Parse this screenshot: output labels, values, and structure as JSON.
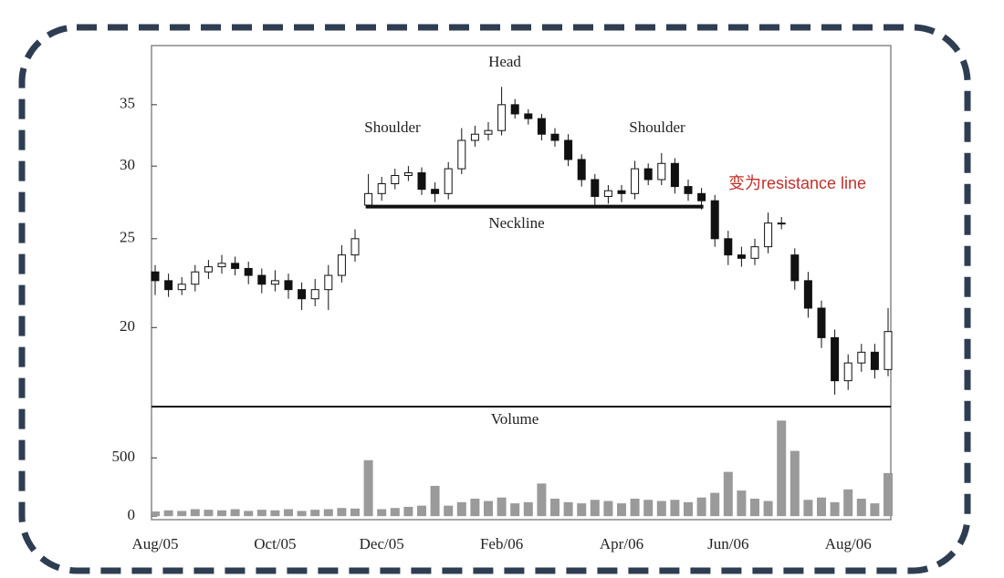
{
  "chart_data": {
    "type": "candlestick",
    "log_scale": true,
    "categories": [
      "Aug/05",
      null,
      null,
      null,
      null,
      null,
      null,
      null,
      null,
      "Oct/05",
      null,
      null,
      null,
      null,
      null,
      null,
      null,
      "Dec/05",
      null,
      null,
      null,
      null,
      null,
      null,
      null,
      null,
      "Feb/06",
      null,
      null,
      null,
      null,
      null,
      null,
      null,
      null,
      "Apr/06",
      null,
      null,
      null,
      null,
      null,
      null,
      null,
      "Jun/06",
      null,
      null,
      null,
      null,
      null,
      null,
      null,
      null,
      "Aug/06",
      null,
      null,
      null
    ],
    "open": [
      23.0,
      22.5,
      22.0,
      22.3,
      23.0,
      23.3,
      23.5,
      23.2,
      22.8,
      22.3,
      22.5,
      22.0,
      21.5,
      22.0,
      22.8,
      24.0,
      27.2,
      28.0,
      28.7,
      29.3,
      29.5,
      28.3,
      28.0,
      29.8,
      32.0,
      32.5,
      32.8,
      35.0,
      34.2,
      33.8,
      32.5,
      32.0,
      30.5,
      29.0,
      27.8,
      28.2,
      28.0,
      29.8,
      29.0,
      30.2,
      28.5,
      28.0,
      27.5,
      25.0,
      24.0,
      23.8,
      24.5,
      26.0,
      24.0,
      22.5,
      21.0,
      19.5,
      17.5,
      18.3,
      18.8,
      18.0
    ],
    "high": [
      23.4,
      22.9,
      22.7,
      23.4,
      23.7,
      24.0,
      23.9,
      23.6,
      23.2,
      23.1,
      22.9,
      22.4,
      22.6,
      23.4,
      24.6,
      25.6,
      29.4,
      29.2,
      29.8,
      30.0,
      29.9,
      28.8,
      30.3,
      33.0,
      33.2,
      33.5,
      36.6,
      35.5,
      34.6,
      34.2,
      33.0,
      32.5,
      30.9,
      29.4,
      28.6,
      28.6,
      30.4,
      30.2,
      31.0,
      30.6,
      29.0,
      28.4,
      27.9,
      25.5,
      24.5,
      25.0,
      26.7,
      26.4,
      24.4,
      23.0,
      21.4,
      19.9,
      18.7,
      19.2,
      19.2,
      21.0
    ],
    "low": [
      21.7,
      21.6,
      21.7,
      21.9,
      22.6,
      22.9,
      22.8,
      22.3,
      21.8,
      21.9,
      21.5,
      20.9,
      21.1,
      20.9,
      22.4,
      23.6,
      27.0,
      27.5,
      28.3,
      28.9,
      27.9,
      27.4,
      27.6,
      29.4,
      31.5,
      32.0,
      32.4,
      33.8,
      33.3,
      32.0,
      31.5,
      30.0,
      28.5,
      27.2,
      27.3,
      27.4,
      27.6,
      28.6,
      28.6,
      28.0,
      27.5,
      26.9,
      24.5,
      23.4,
      23.3,
      23.4,
      24.1,
      25.6,
      22.0,
      20.5,
      19.0,
      16.9,
      17.1,
      17.9,
      17.6,
      17.7
    ],
    "close": [
      22.5,
      22.0,
      22.3,
      23.0,
      23.3,
      23.5,
      23.2,
      22.8,
      22.3,
      22.5,
      22.0,
      21.5,
      22.0,
      22.8,
      24.0,
      25.0,
      28.0,
      28.7,
      29.3,
      29.5,
      28.3,
      28.0,
      29.8,
      32.0,
      32.5,
      32.8,
      35.0,
      34.2,
      33.8,
      32.5,
      32.0,
      30.5,
      29.0,
      27.8,
      28.2,
      28.0,
      29.8,
      29.0,
      30.2,
      28.5,
      28.0,
      27.5,
      25.0,
      24.0,
      23.8,
      24.5,
      26.0,
      26.0,
      22.5,
      21.0,
      19.5,
      17.5,
      18.3,
      18.8,
      18.0,
      19.8
    ],
    "ylim": [
      16.4,
      40.6
    ],
    "yticks": [
      20,
      25,
      30,
      35
    ],
    "neckline": {
      "label": "Neckline",
      "value": 27.1,
      "from": 16,
      "to": 41
    },
    "annotations": {
      "head": "Head",
      "left_shoulder": "Shoulder",
      "right_shoulder": "Shoulder",
      "resistance": "变为resistance line"
    },
    "volume": {
      "title": "Volume",
      "color": "#9a9a9a",
      "values": [
        40,
        50,
        45,
        60,
        55,
        50,
        60,
        45,
        55,
        50,
        60,
        45,
        55,
        60,
        70,
        65,
        480,
        60,
        70,
        80,
        90,
        260,
        90,
        120,
        150,
        130,
        160,
        110,
        120,
        280,
        150,
        120,
        110,
        140,
        130,
        110,
        150,
        140,
        130,
        140,
        120,
        160,
        200,
        380,
        220,
        150,
        130,
        820,
        560,
        140,
        160,
        120,
        230,
        150,
        110,
        370
      ],
      "ylim": [
        -30,
        940
      ],
      "yticks": [
        0,
        500
      ]
    }
  }
}
